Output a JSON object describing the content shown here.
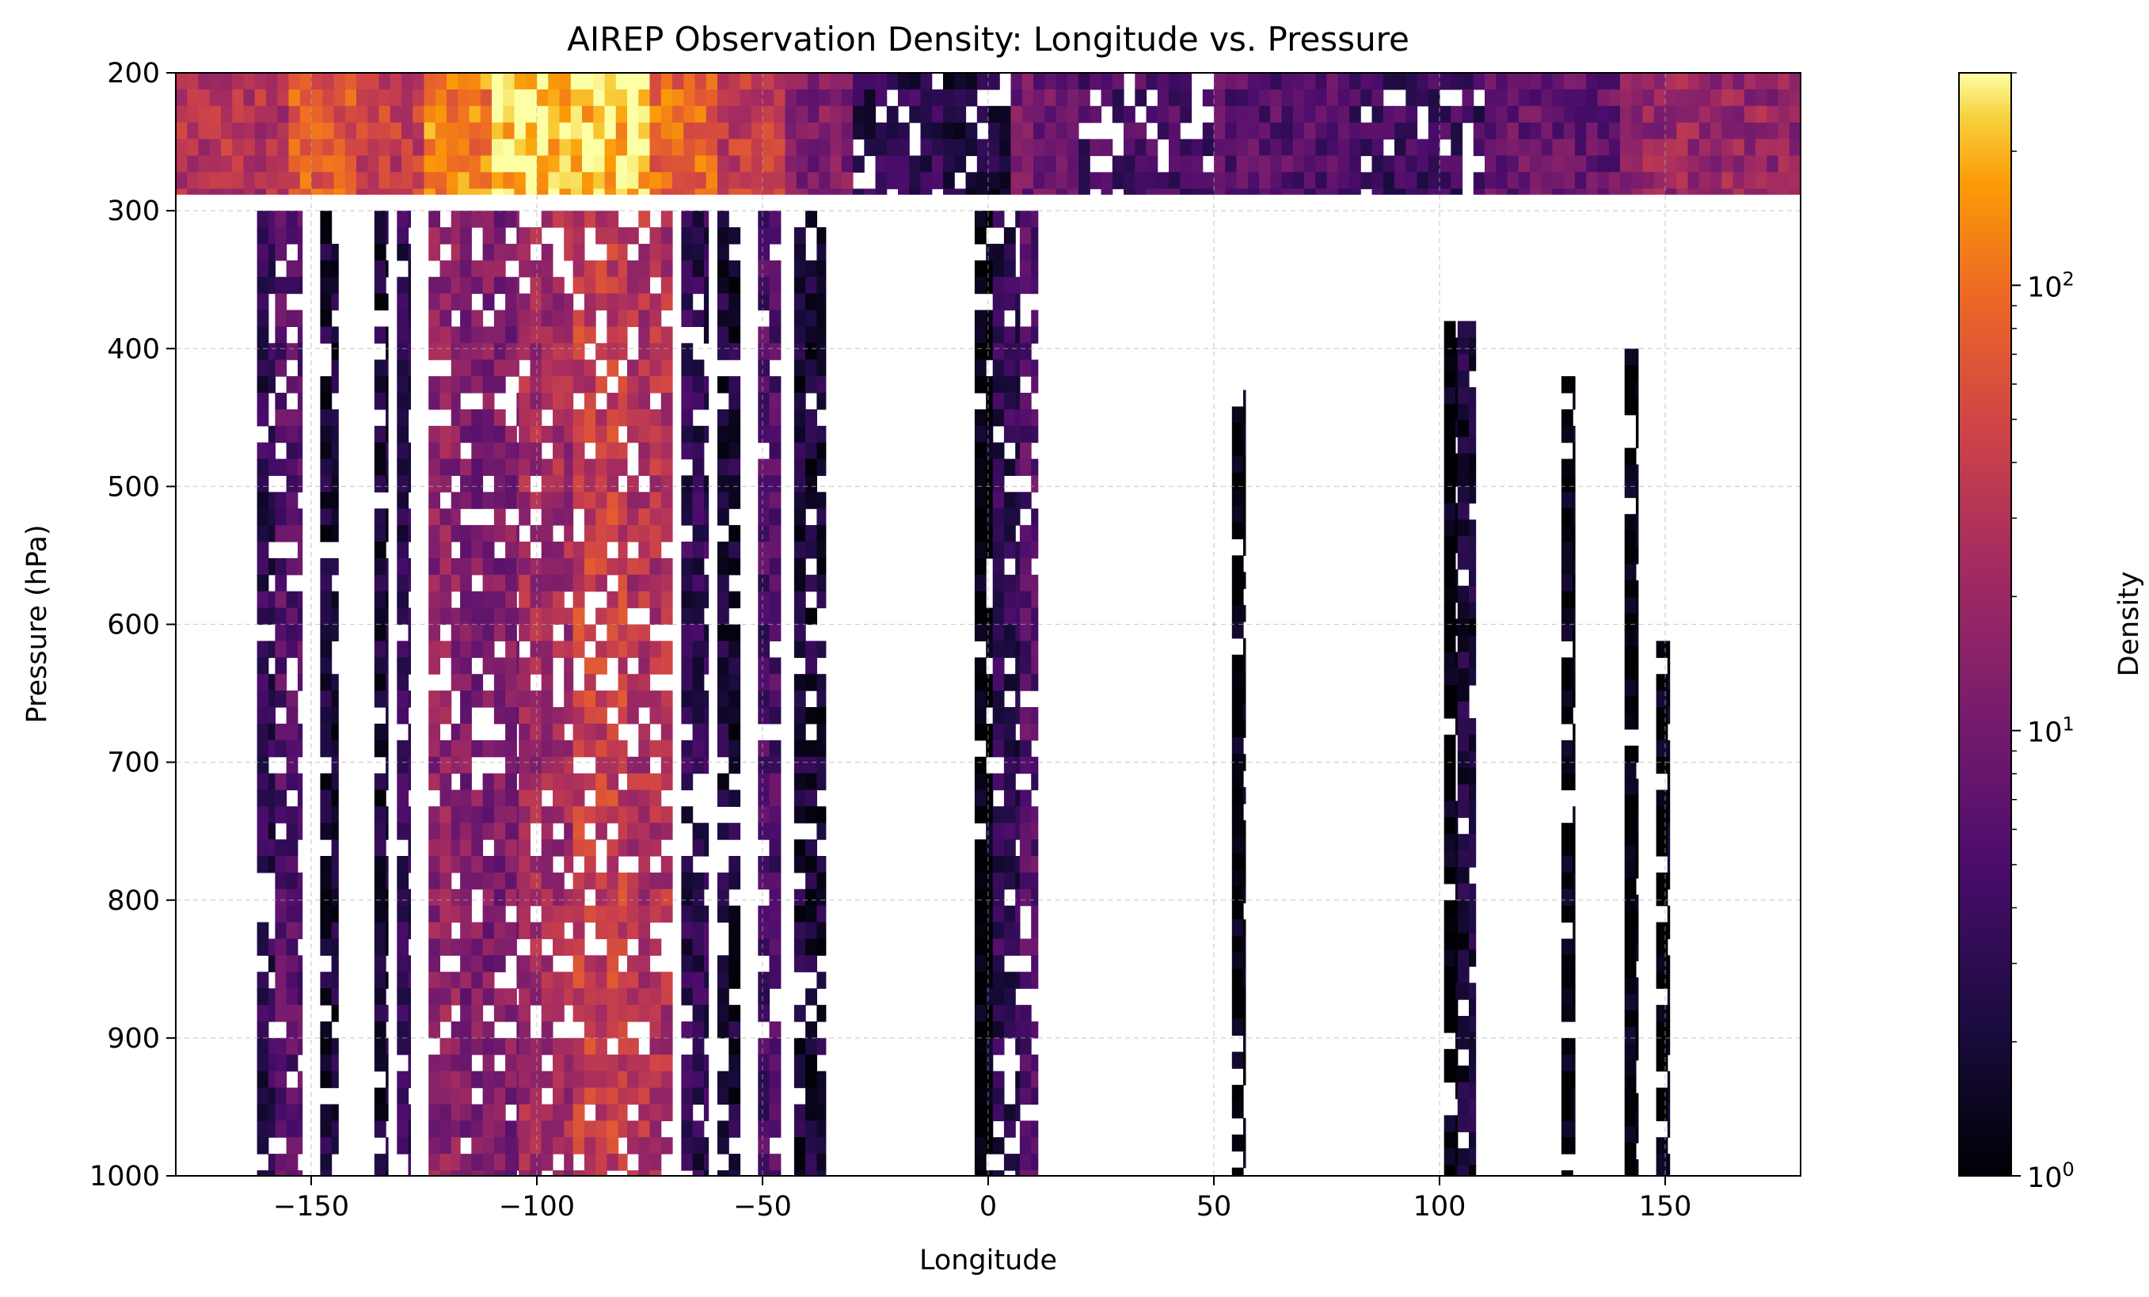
{
  "chart_data": {
    "type": "heatmap",
    "title": "AIREP Observation Density: Longitude vs. Pressure",
    "xlabel": "Longitude",
    "ylabel": "Pressure (hPa)",
    "xlim": [
      -180,
      180
    ],
    "ylim": [
      1000,
      200
    ],
    "y_inverted": true,
    "x_ticks": [
      -150,
      -100,
      -50,
      0,
      50,
      100,
      150
    ],
    "x_tick_labels": [
      "−150",
      "−100",
      "−50",
      "0",
      "50",
      "100",
      "150"
    ],
    "y_ticks": [
      200,
      300,
      400,
      500,
      600,
      700,
      800,
      900,
      1000
    ],
    "y_tick_labels": [
      "200",
      "300",
      "400",
      "500",
      "600",
      "700",
      "800",
      "900",
      "1000"
    ],
    "grid": true,
    "colormap": "inferno",
    "colorbar": {
      "label": "Density",
      "scale": "log",
      "range": [
        1,
        300
      ],
      "major_ticks": [
        1,
        10,
        100
      ],
      "major_labels": [
        [
          "10",
          "0"
        ],
        [
          "10",
          "1"
        ],
        [
          "10",
          "2"
        ]
      ]
    },
    "columns": [
      {
        "lon": [
          -162,
          -158
        ],
        "p": [
          300,
          1000
        ],
        "density": 3
      },
      {
        "lon": [
          -158,
          -152
        ],
        "p": [
          300,
          1000
        ],
        "density": 6
      },
      {
        "lon": [
          -148,
          -144
        ],
        "p": [
          300,
          1000
        ],
        "density": 2
      },
      {
        "lon": [
          -136,
          -133
        ],
        "p": [
          300,
          1000
        ],
        "density": 2
      },
      {
        "lon": [
          -131,
          -128
        ],
        "p": [
          300,
          1000
        ],
        "density": 3
      },
      {
        "lon": [
          -124,
          -117
        ],
        "p": [
          300,
          1000
        ],
        "density": 15
      },
      {
        "lon": [
          -117,
          -104
        ],
        "p": [
          300,
          1000
        ],
        "density": 12
      },
      {
        "lon": [
          -104,
          -92
        ],
        "p": [
          300,
          1000
        ],
        "density": 22
      },
      {
        "lon": [
          -92,
          -80
        ],
        "p": [
          300,
          1000
        ],
        "density": 40
      },
      {
        "lon": [
          -80,
          -70
        ],
        "p": [
          300,
          1000
        ],
        "density": 28
      },
      {
        "lon": [
          -68,
          -62
        ],
        "p": [
          300,
          1000
        ],
        "density": 3
      },
      {
        "lon": [
          -60,
          -55
        ],
        "p": [
          300,
          1000
        ],
        "density": 2
      },
      {
        "lon": [
          -51,
          -46
        ],
        "p": [
          300,
          1000
        ],
        "density": 5
      },
      {
        "lon": [
          -43,
          -36
        ],
        "p": [
          300,
          1000
        ],
        "density": 2
      },
      {
        "lon": [
          -3,
          1
        ],
        "p": [
          300,
          1000
        ],
        "density": 1
      },
      {
        "lon": [
          1,
          7
        ],
        "p": [
          300,
          1000
        ],
        "density": 3
      },
      {
        "lon": [
          7,
          11
        ],
        "p": [
          300,
          1000
        ],
        "density": 6
      },
      {
        "lon": [
          54,
          57
        ],
        "p": [
          430,
          1000
        ],
        "density": 1
      },
      {
        "lon": [
          101,
          104
        ],
        "p": [
          380,
          1000
        ],
        "density": 1
      },
      {
        "lon": [
          104,
          108
        ],
        "p": [
          380,
          1000
        ],
        "density": 2
      },
      {
        "lon": [
          127,
          130
        ],
        "p": [
          420,
          1000
        ],
        "density": 1
      },
      {
        "lon": [
          141,
          144
        ],
        "p": [
          400,
          1000
        ],
        "density": 1
      },
      {
        "lon": [
          148,
          151
        ],
        "p": [
          600,
          1000
        ],
        "density": 1
      }
    ],
    "top_band": [
      {
        "lon": [
          -180,
          -170
        ],
        "p": [
          200,
          288
        ],
        "density": 28
      },
      {
        "lon": [
          -170,
          -155
        ],
        "p": [
          200,
          288
        ],
        "density": 30
      },
      {
        "lon": [
          -155,
          -140
        ],
        "p": [
          200,
          288
        ],
        "density": 70
      },
      {
        "lon": [
          -140,
          -125
        ],
        "p": [
          200,
          288
        ],
        "density": 40
      },
      {
        "lon": [
          -125,
          -110
        ],
        "p": [
          200,
          288
        ],
        "density": 120
      },
      {
        "lon": [
          -110,
          -75
        ],
        "p": [
          200,
          288
        ],
        "density": 230
      },
      {
        "lon": [
          -75,
          -60
        ],
        "p": [
          200,
          288
        ],
        "density": 90
      },
      {
        "lon": [
          -60,
          -45
        ],
        "p": [
          200,
          288
        ],
        "density": 40
      },
      {
        "lon": [
          -45,
          -30
        ],
        "p": [
          200,
          288
        ],
        "density": 12
      },
      {
        "lon": [
          -30,
          -10
        ],
        "p": [
          200,
          288
        ],
        "density": 3
      },
      {
        "lon": [
          -10,
          5
        ],
        "p": [
          200,
          288
        ],
        "density": 2
      },
      {
        "lon": [
          5,
          20
        ],
        "p": [
          200,
          288
        ],
        "density": 10
      },
      {
        "lon": [
          20,
          50
        ],
        "p": [
          200,
          288
        ],
        "density": 5
      },
      {
        "lon": [
          50,
          80
        ],
        "p": [
          200,
          288
        ],
        "density": 6
      },
      {
        "lon": [
          80,
          110
        ],
        "p": [
          200,
          288
        ],
        "density": 4
      },
      {
        "lon": [
          110,
          140
        ],
        "p": [
          200,
          288
        ],
        "density": 8
      },
      {
        "lon": [
          140,
          180
        ],
        "p": [
          200,
          288
        ],
        "density": 18
      }
    ]
  }
}
